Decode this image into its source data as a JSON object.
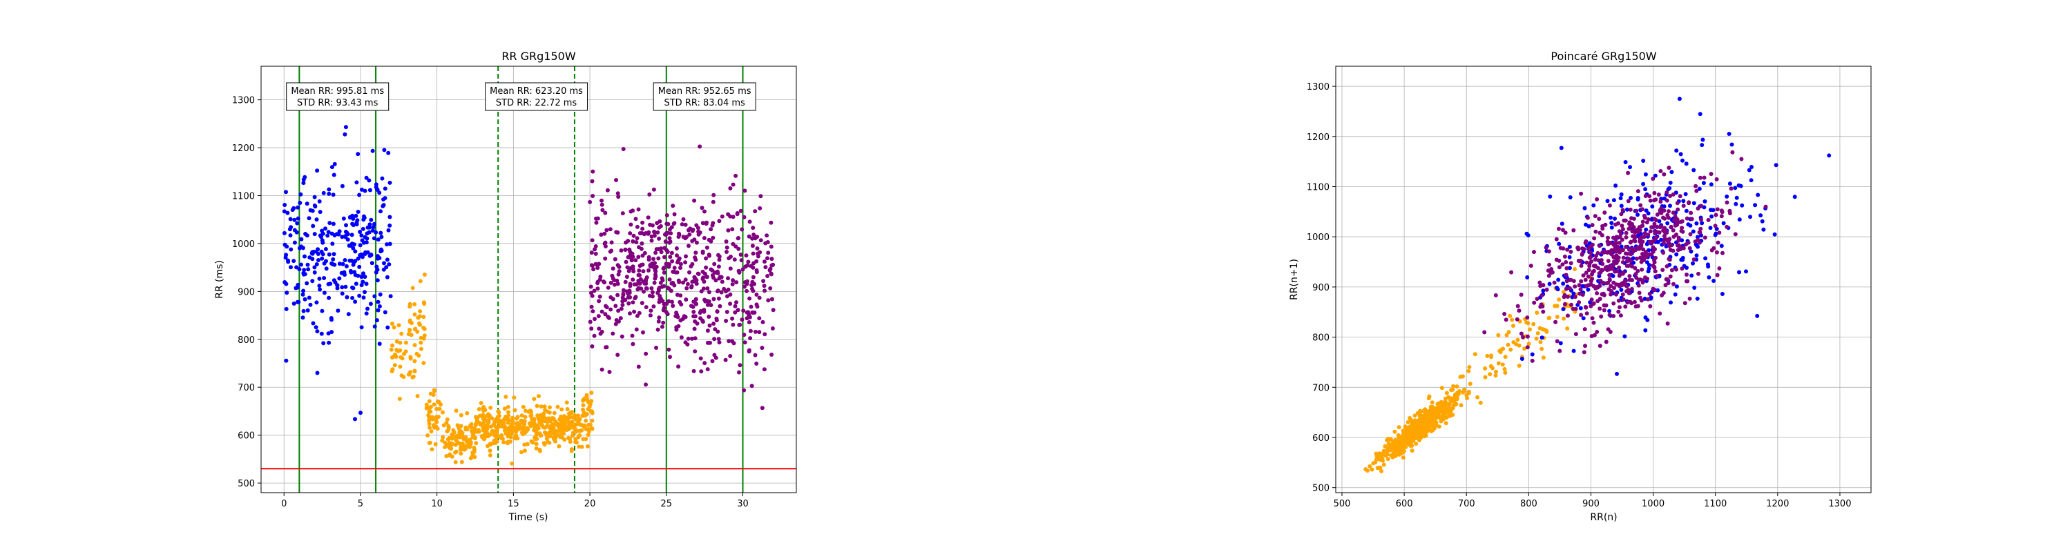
{
  "chart_data": [
    {
      "type": "scatter",
      "title": "RR GRg150W",
      "xlabel": "Time (s)",
      "ylabel": "RR (ms)",
      "xlim": [
        -1.5,
        33.5
      ],
      "ylim": [
        480,
        1370
      ],
      "xticks": [
        "0",
        "5",
        "10",
        "15",
        "20",
        "25",
        "30"
      ],
      "yticks": [
        "500",
        "600",
        "700",
        "800",
        "900",
        "1000",
        "1100",
        "1200",
        "1300"
      ],
      "grid": true,
      "threshold_line": {
        "y": 530,
        "color": "#ff0000"
      },
      "vertical_lines": [
        {
          "x": 1,
          "style": "solid",
          "color": "#008000"
        },
        {
          "x": 6,
          "style": "solid",
          "color": "#008000"
        },
        {
          "x": 14,
          "style": "dashed",
          "color": "#008000"
        },
        {
          "x": 19,
          "style": "dashed",
          "color": "#008000"
        },
        {
          "x": 25,
          "style": "solid",
          "color": "#008000"
        },
        {
          "x": 30,
          "style": "solid",
          "color": "#008000"
        }
      ],
      "annotations": [
        {
          "x": 3.5,
          "line1": "Mean RR: 995.81 ms",
          "line2": "STD RR: 93.43 ms"
        },
        {
          "x": 16.5,
          "line1": "Mean RR: 623.20 ms",
          "line2": "STD RR: 22.72 ms"
        },
        {
          "x": 27.5,
          "line1": "Mean RR: 952.65 ms",
          "line2": "STD RR: 83.04 ms"
        }
      ],
      "series": [
        {
          "color": "#0000ff",
          "segments": [
            {
              "x": [
                0,
                7
              ],
              "mean": 990,
              "sd": 85,
              "count": 330
            }
          ]
        },
        {
          "color": "#ffa500",
          "segments": [
            {
              "x": [
                7,
                8.2
              ],
              "mean": 770,
              "sd": 35,
              "count": 30
            },
            {
              "x": [
                8.2,
                9.2
              ],
              "mean": 820,
              "sd": 55,
              "count": 45
            },
            {
              "x": [
                9.2,
                10.5
              ],
              "mean": 640,
              "sd": 30,
              "count": 50
            },
            {
              "x": [
                10.5,
                12.5
              ],
              "mean": 590,
              "sd": 22,
              "count": 110
            },
            {
              "x": [
                12.5,
                19.5
              ],
              "mean": 618,
              "sd": 20,
              "count": 420
            },
            {
              "x": [
                19.5,
                20.2
              ],
              "mean": 640,
              "sd": 30,
              "count": 40
            }
          ]
        },
        {
          "color": "#800080",
          "segments": [
            {
              "x": [
                20,
                22
              ],
              "mean": 930,
              "sd": 90,
              "count": 100
            },
            {
              "x": [
                22,
                26
              ],
              "mean": 940,
              "sd": 75,
              "count": 260
            },
            {
              "x": [
                26,
                32
              ],
              "mean": 930,
              "sd": 85,
              "count": 320
            }
          ]
        }
      ]
    },
    {
      "type": "scatter",
      "title": "Poincaré GRg150W",
      "xlabel": "RR(n)",
      "ylabel": "RR(n+1)",
      "xlim": [
        490,
        1350
      ],
      "ylim": [
        490,
        1340
      ],
      "xticks": [
        "500",
        "600",
        "700",
        "800",
        "900",
        "1000",
        "1100",
        "1200",
        "1300"
      ],
      "yticks": [
        "500",
        "600",
        "700",
        "800",
        "900",
        "1000",
        "1100",
        "1200",
        "1300"
      ],
      "grid": true,
      "series": [
        {
          "color": "#ffa500",
          "clusters": [
            {
              "cx": 625,
              "cy": 620,
              "sx": 30,
              "sy": 30,
              "count": 700,
              "corr": 0.92
            },
            {
              "cx": 790,
              "cy": 790,
              "sx": 55,
              "sy": 55,
              "count": 90,
              "corr": 0.85
            }
          ]
        },
        {
          "color": "#0000ff",
          "clusters": [
            {
              "cx": 990,
              "cy": 990,
              "sx": 90,
              "sy": 90,
              "count": 320,
              "corr": 0.45
            }
          ]
        },
        {
          "color": "#800080",
          "clusters": [
            {
              "cx": 960,
              "cy": 960,
              "sx": 70,
              "sy": 70,
              "count": 600,
              "corr": 0.55
            }
          ]
        }
      ]
    }
  ]
}
